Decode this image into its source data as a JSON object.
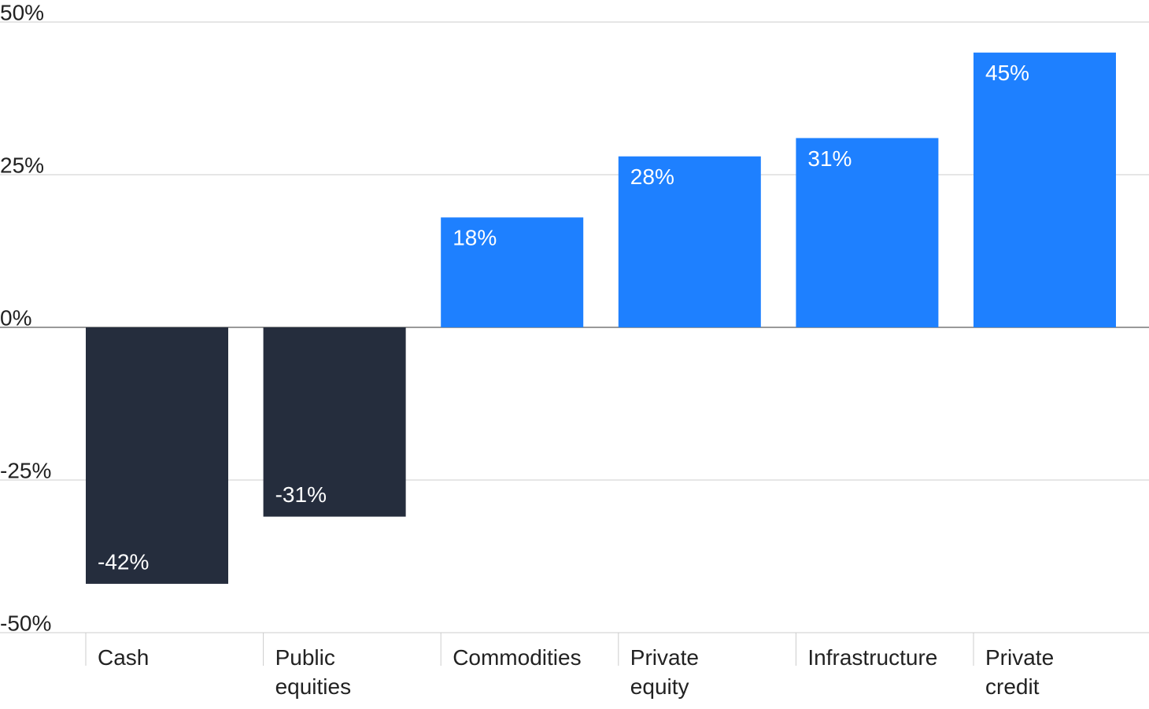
{
  "chart_data": {
    "type": "bar",
    "categories": [
      "Cash",
      "Public equities",
      "Commodities",
      "Private equity",
      "Infrastructure",
      "Private credit"
    ],
    "values": [
      -42,
      -31,
      18,
      28,
      31,
      45
    ],
    "value_labels": [
      "-42%",
      "-31%",
      "18%",
      "28%",
      "31%",
      "45%"
    ],
    "colors": [
      "#252d3d",
      "#252d3d",
      "#1e80ff",
      "#1e80ff",
      "#1e80ff",
      "#1e80ff"
    ],
    "ylim": [
      -50,
      50
    ],
    "yticks": [
      {
        "value": -50,
        "label": "-50%"
      },
      {
        "value": -25,
        "label": "-25%"
      },
      {
        "value": 0,
        "label": "0%"
      },
      {
        "value": 25,
        "label": "25%"
      },
      {
        "value": 50,
        "label": "50%"
      }
    ],
    "grid": true
  }
}
